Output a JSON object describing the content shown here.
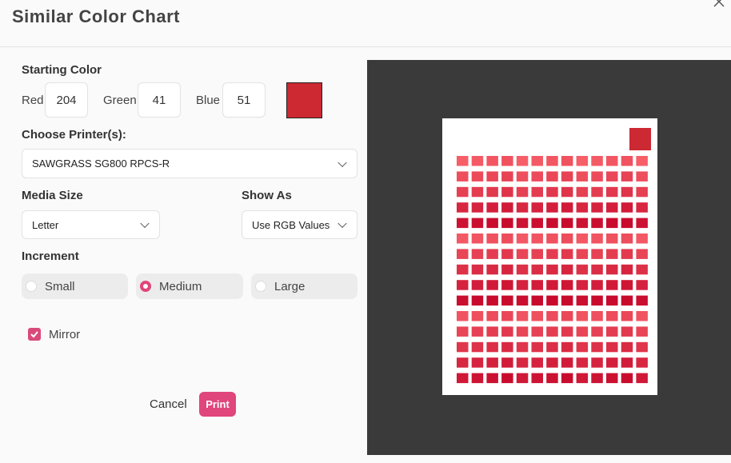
{
  "header": {
    "title": "Similar Color Chart"
  },
  "starting_color": {
    "label": "Starting Color",
    "red": {
      "label": "Red",
      "value": 204
    },
    "green": {
      "label": "Green",
      "value": 41
    },
    "blue": {
      "label": "Blue",
      "value": 51
    }
  },
  "printer": {
    "label": "Choose Printer(s):",
    "selected": "SAWGRASS SG800 RPCS-R"
  },
  "media_size": {
    "label": "Media Size",
    "selected": "Letter"
  },
  "show_as": {
    "label": "Show As",
    "selected": "Use RGB Values"
  },
  "increment": {
    "label": "Increment",
    "options": [
      "Small",
      "Medium",
      "Large"
    ],
    "selected": 1
  },
  "mirror": {
    "label": "Mirror",
    "checked": true
  },
  "buttons": {
    "cancel": "Cancel",
    "print": "Print"
  }
}
